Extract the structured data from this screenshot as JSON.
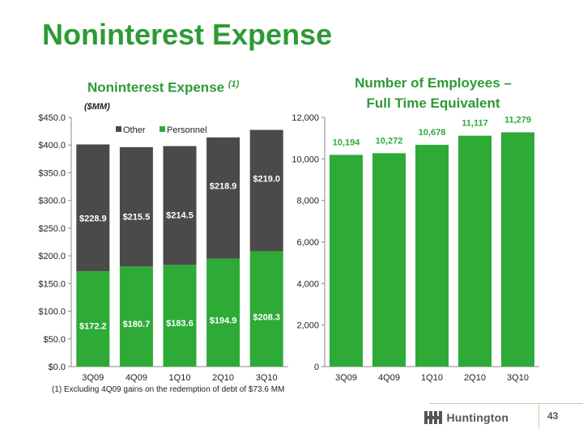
{
  "page": {
    "title": "Noninterest Expense",
    "page_number": "43",
    "footnote": "(1)   Excluding 4Q09 gains on the redemption of debt of $73.6 MM",
    "logo_text": "Huntington",
    "colors": {
      "green": "#2eaa37",
      "dark_gray": "#4a4a4a",
      "title_green": "#2e9a36"
    }
  },
  "chart_data": [
    {
      "type": "bar",
      "stacked": true,
      "title": "Noninterest Expense",
      "title_suffix": "(1)",
      "units": "($MM)",
      "categories": [
        "3Q09",
        "4Q09",
        "1Q10",
        "2Q10",
        "3Q10"
      ],
      "series": [
        {
          "name": "Personnel",
          "color": "#2eaa37",
          "values": [
            172.2,
            180.7,
            183.6,
            194.9,
            208.3
          ],
          "labels": [
            "$172.2",
            "$180.7",
            "$183.6",
            "$194.9",
            "$208.3"
          ]
        },
        {
          "name": "Other",
          "color": "#4a4a4a",
          "values": [
            228.9,
            215.5,
            214.5,
            218.9,
            219.0
          ],
          "labels": [
            "$228.9",
            "$215.5",
            "$214.5",
            "$218.9",
            "$219.0"
          ]
        }
      ],
      "legend": [
        "Other",
        "Personnel"
      ],
      "legend_position": "top",
      "ylim": [
        0,
        450
      ],
      "yticks": [
        0,
        50,
        100,
        150,
        200,
        250,
        300,
        350,
        400,
        450
      ],
      "ytick_labels": [
        "$0.0",
        "$50.0",
        "$100.0",
        "$150.0",
        "$200.0",
        "$250.0",
        "$300.0",
        "$350.0",
        "$400.0",
        "$450.0"
      ],
      "grid": false
    },
    {
      "type": "bar",
      "title_line1": "Number of Employees –",
      "title_line2": "Full Time Equivalent",
      "categories": [
        "3Q09",
        "4Q09",
        "1Q10",
        "2Q10",
        "3Q10"
      ],
      "values": [
        10194,
        10272,
        10678,
        11117,
        11279
      ],
      "labels": [
        "10,194",
        "10,272",
        "10,678",
        "11,117",
        "11,279"
      ],
      "color": "#2eaa37",
      "ylim": [
        0,
        12000
      ],
      "yticks": [
        0,
        2000,
        4000,
        6000,
        8000,
        10000,
        12000
      ],
      "ytick_labels": [
        "0",
        "2,000",
        "4,000",
        "6,000",
        "8,000",
        "10,000",
        "12,000"
      ],
      "grid": false
    }
  ]
}
